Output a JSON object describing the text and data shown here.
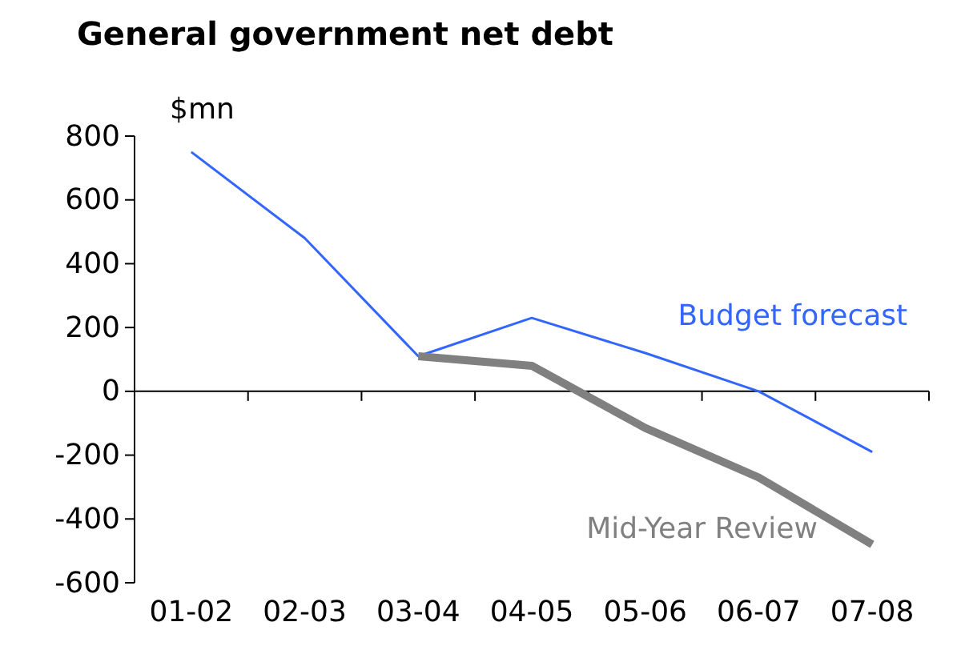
{
  "chart_data": {
    "type": "line",
    "title": "General government net debt",
    "ylabel": "$mn",
    "categories": [
      "01-02",
      "02-03",
      "03-04",
      "04-05",
      "05-06",
      "06-07",
      "07-08"
    ],
    "series": [
      {
        "name": "Budget forecast",
        "color": "#3366ff",
        "values": [
          750,
          480,
          110,
          230,
          120,
          0,
          -190
        ]
      },
      {
        "name": "Mid-Year Review",
        "color": "#808080",
        "values": [
          null,
          null,
          110,
          80,
          -115,
          -270,
          -480
        ]
      }
    ],
    "ylim": [
      -600,
      800
    ],
    "yticks": [
      -600,
      -400,
      -200,
      0,
      200,
      400,
      600,
      800
    ],
    "marker": "none",
    "line_style": "solid"
  }
}
